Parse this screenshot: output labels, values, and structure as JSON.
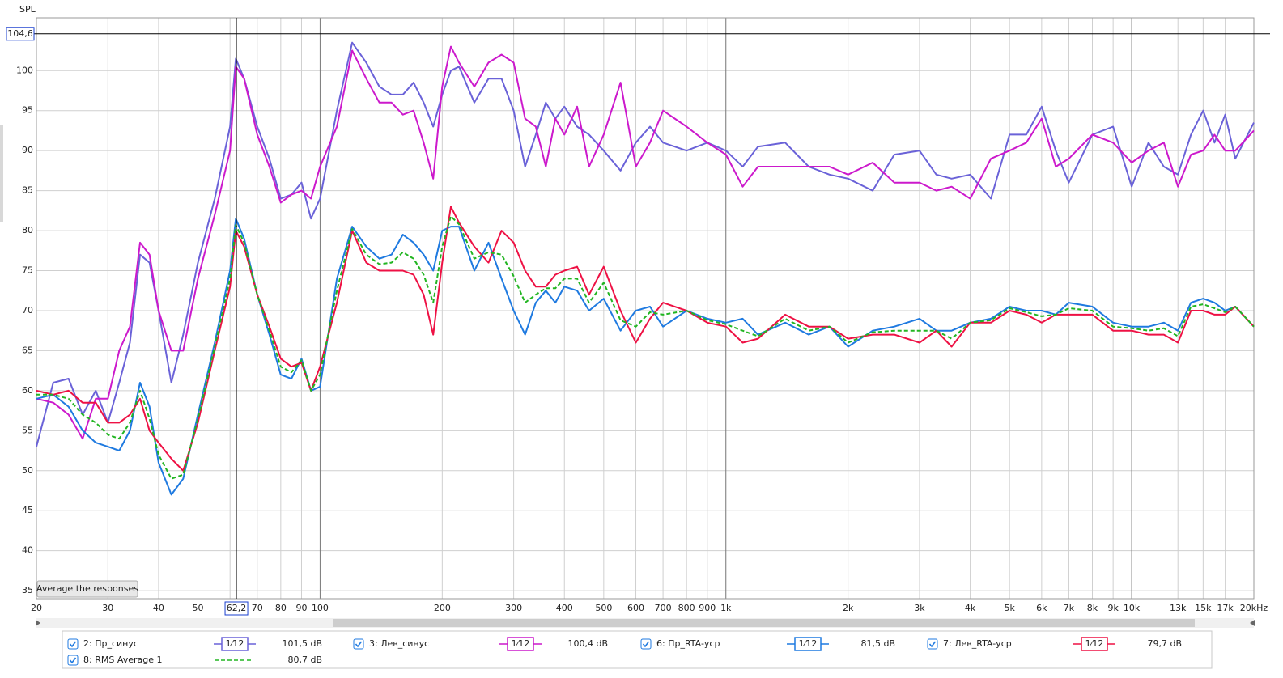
{
  "chart_data": {
    "type": "line",
    "y_label": "SPL",
    "log_x": true,
    "grid": true,
    "xlim": [
      20,
      20000
    ],
    "ylim": [
      34,
      106.6
    ],
    "yticks": [
      35,
      40,
      45,
      50,
      55,
      60,
      65,
      70,
      75,
      80,
      85,
      90,
      95,
      100
    ],
    "xticks": [
      20,
      30,
      40,
      50,
      {
        "value": 60,
        "label": null
      },
      70,
      80,
      90,
      100,
      200,
      300,
      400,
      500,
      600,
      700,
      800,
      900,
      {
        "value": 1000,
        "label": "1k"
      },
      {
        "value": 2000,
        "label": "2k"
      },
      {
        "value": 3000,
        "label": "3k"
      },
      {
        "value": 4000,
        "label": "4k"
      },
      {
        "value": 5000,
        "label": "5k"
      },
      {
        "value": 6000,
        "label": "6k"
      },
      {
        "value": 7000,
        "label": "7k"
      },
      {
        "value": 8000,
        "label": "8k"
      },
      {
        "value": 9000,
        "label": "9k"
      },
      {
        "value": 10000,
        "label": "10k"
      },
      {
        "value": 13000,
        "label": "13k"
      },
      {
        "value": 15000,
        "label": "15k"
      },
      {
        "value": 17000,
        "label": "17k"
      },
      {
        "value": 20000,
        "label": "20kHz"
      }
    ],
    "cursor": {
      "x": {
        "value": 62.2,
        "label": "62,2"
      },
      "y": {
        "value": 104.6,
        "label": "104,6"
      }
    },
    "button": "Average the responses",
    "x": [
      20,
      22,
      24,
      26,
      28,
      30,
      32,
      34,
      36,
      38,
      40,
      43,
      46,
      50,
      55,
      60,
      62,
      65,
      70,
      75,
      80,
      85,
      90,
      95,
      100,
      110,
      120,
      130,
      140,
      150,
      160,
      170,
      180,
      190,
      200,
      210,
      220,
      240,
      260,
      280,
      300,
      320,
      340,
      360,
      380,
      400,
      430,
      460,
      500,
      550,
      600,
      650,
      700,
      800,
      900,
      1000,
      1100,
      1200,
      1400,
      1600,
      1800,
      2000,
      2300,
      2600,
      3000,
      3300,
      3600,
      4000,
      4500,
      5000,
      5500,
      6000,
      6500,
      7000,
      8000,
      9000,
      10000,
      11000,
      12000,
      13000,
      14000,
      15000,
      16000,
      17000,
      18000,
      20000
    ],
    "series": [
      {
        "name": "2: Пр_синус",
        "color": "#6a62d8",
        "smoothing": "1⁄12",
        "reading": {
          "value": 101.5,
          "label": "101,5 dB"
        },
        "values": [
          53,
          61,
          61.5,
          57,
          60,
          56,
          61,
          66,
          77,
          76,
          70,
          61,
          67,
          76,
          84,
          93,
          101.5,
          99,
          93,
          89,
          84,
          84.5,
          86,
          81.5,
          84,
          95,
          103.5,
          101,
          98,
          97,
          97,
          98.5,
          96,
          93,
          97,
          100,
          100.5,
          96,
          99,
          99,
          95,
          88,
          92,
          96,
          94,
          95.5,
          93,
          92,
          90,
          87.5,
          91,
          93,
          91,
          90,
          91,
          90,
          88,
          90.5,
          91,
          88,
          87,
          86.5,
          85,
          89.5,
          90,
          87,
          86.5,
          87,
          84,
          92,
          92,
          95.5,
          90,
          86,
          92,
          93,
          85.5,
          91,
          88,
          87,
          92,
          95,
          91,
          94.5,
          89,
          93.5
        ]
      },
      {
        "name": "3: Лев_синус",
        "color": "#cc19cc",
        "smoothing": "1⁄12",
        "reading": {
          "value": 100.4,
          "label": "100,4 dB"
        },
        "values": [
          59,
          58.5,
          57,
          54,
          59,
          59,
          65,
          68,
          78.5,
          77,
          70,
          65,
          65,
          74,
          82,
          90,
          100.5,
          99,
          92,
          88,
          83.5,
          84.5,
          85,
          84,
          88,
          93,
          102.5,
          99,
          96,
          96,
          94.5,
          95,
          91,
          86.5,
          98,
          103,
          101,
          98,
          101,
          102,
          101,
          94,
          93,
          88,
          94,
          92,
          95.5,
          88,
          92,
          98.5,
          88,
          91,
          95,
          93,
          91,
          89.5,
          85.5,
          88,
          88,
          88,
          88,
          87,
          88.5,
          86,
          86,
          85,
          85.5,
          84,
          89,
          90,
          91,
          94,
          88,
          89,
          92,
          91,
          88.5,
          90,
          91,
          85.5,
          89.5,
          90,
          92,
          90,
          90,
          92.5
        ]
      },
      {
        "name": "6: Пр_RTA-уср",
        "color": "#1f7ae0",
        "smoothing": "1⁄12",
        "reading": {
          "value": 81.5,
          "label": "81,5 dB"
        },
        "values": [
          59,
          59.5,
          58,
          55,
          53.5,
          53,
          52.5,
          55,
          61,
          58,
          51,
          47,
          49,
          57,
          66,
          75,
          81.5,
          79,
          72,
          67,
          62,
          61.5,
          64,
          60,
          60.5,
          74,
          80.5,
          78,
          76.5,
          77,
          79.5,
          78.5,
          77,
          75,
          80,
          80.5,
          80.5,
          75,
          78.5,
          74,
          70,
          67,
          71,
          72.5,
          71,
          73,
          72.5,
          70,
          71.5,
          67.5,
          70,
          70.5,
          68,
          70,
          69,
          68.5,
          69,
          67,
          68.5,
          67,
          68,
          65.5,
          67.5,
          68,
          69,
          67.5,
          67.5,
          68.5,
          69,
          70.5,
          70,
          70,
          69.5,
          71,
          70.5,
          68.5,
          68,
          68,
          68.5,
          67.5,
          71,
          71.5,
          71,
          70,
          70.5,
          68
        ]
      },
      {
        "name": "7: Лев_RTA-уср",
        "color": "#ee1144",
        "smoothing": "1⁄12",
        "reading": {
          "value": 79.7,
          "label": "79,7 dB"
        },
        "values": [
          60,
          59.5,
          60,
          58.5,
          58.5,
          56,
          56,
          57,
          59,
          55,
          53.5,
          51.5,
          50,
          56,
          65,
          73,
          80,
          78,
          72,
          68,
          64,
          63,
          63.5,
          60,
          63,
          71,
          80,
          76,
          75,
          75,
          75,
          74.5,
          72,
          67,
          76,
          83,
          81,
          78,
          76,
          80,
          78.5,
          75,
          73,
          73,
          74.5,
          75,
          75.5,
          72,
          75.5,
          70,
          66,
          69,
          71,
          70,
          68.5,
          68,
          66,
          66.5,
          69.5,
          68,
          68,
          66.5,
          67,
          67,
          66,
          67.5,
          65.5,
          68.5,
          68.5,
          70,
          69.5,
          68.5,
          69.5,
          69.5,
          69.5,
          67.5,
          67.5,
          67,
          67,
          66,
          70,
          70,
          69.5,
          69.5,
          70.5,
          68
        ]
      },
      {
        "name": "8: RMS Average 1",
        "color": "#22b522",
        "dashed": true,
        "reading": {
          "value": 80.7,
          "label": "80,7 dB"
        },
        "values": [
          59.5,
          59.5,
          59,
          57,
          56,
          54.5,
          54,
          56,
          60,
          56.5,
          52,
          49,
          49.5,
          56.5,
          65.5,
          74,
          80.7,
          78.5,
          72,
          67.5,
          63,
          62.3,
          63.8,
          60,
          62,
          72.5,
          80.2,
          77,
          75.8,
          76,
          77.3,
          76.5,
          74.5,
          71,
          78,
          81.8,
          80.8,
          76.5,
          77.3,
          77,
          74.3,
          71,
          72,
          72.8,
          72.8,
          74,
          74,
          71,
          73.5,
          68.8,
          68,
          69.8,
          69.5,
          70,
          68.8,
          68.3,
          67.5,
          66.8,
          69,
          67.5,
          68,
          66,
          67.3,
          67.5,
          67.5,
          67.5,
          66.5,
          68.5,
          68.8,
          70.3,
          69.8,
          69.3,
          69.5,
          70.3,
          70,
          68,
          67.8,
          67.5,
          67.8,
          66.8,
          70.5,
          70.8,
          70.3,
          69.8,
          70.5,
          68
        ]
      }
    ]
  }
}
